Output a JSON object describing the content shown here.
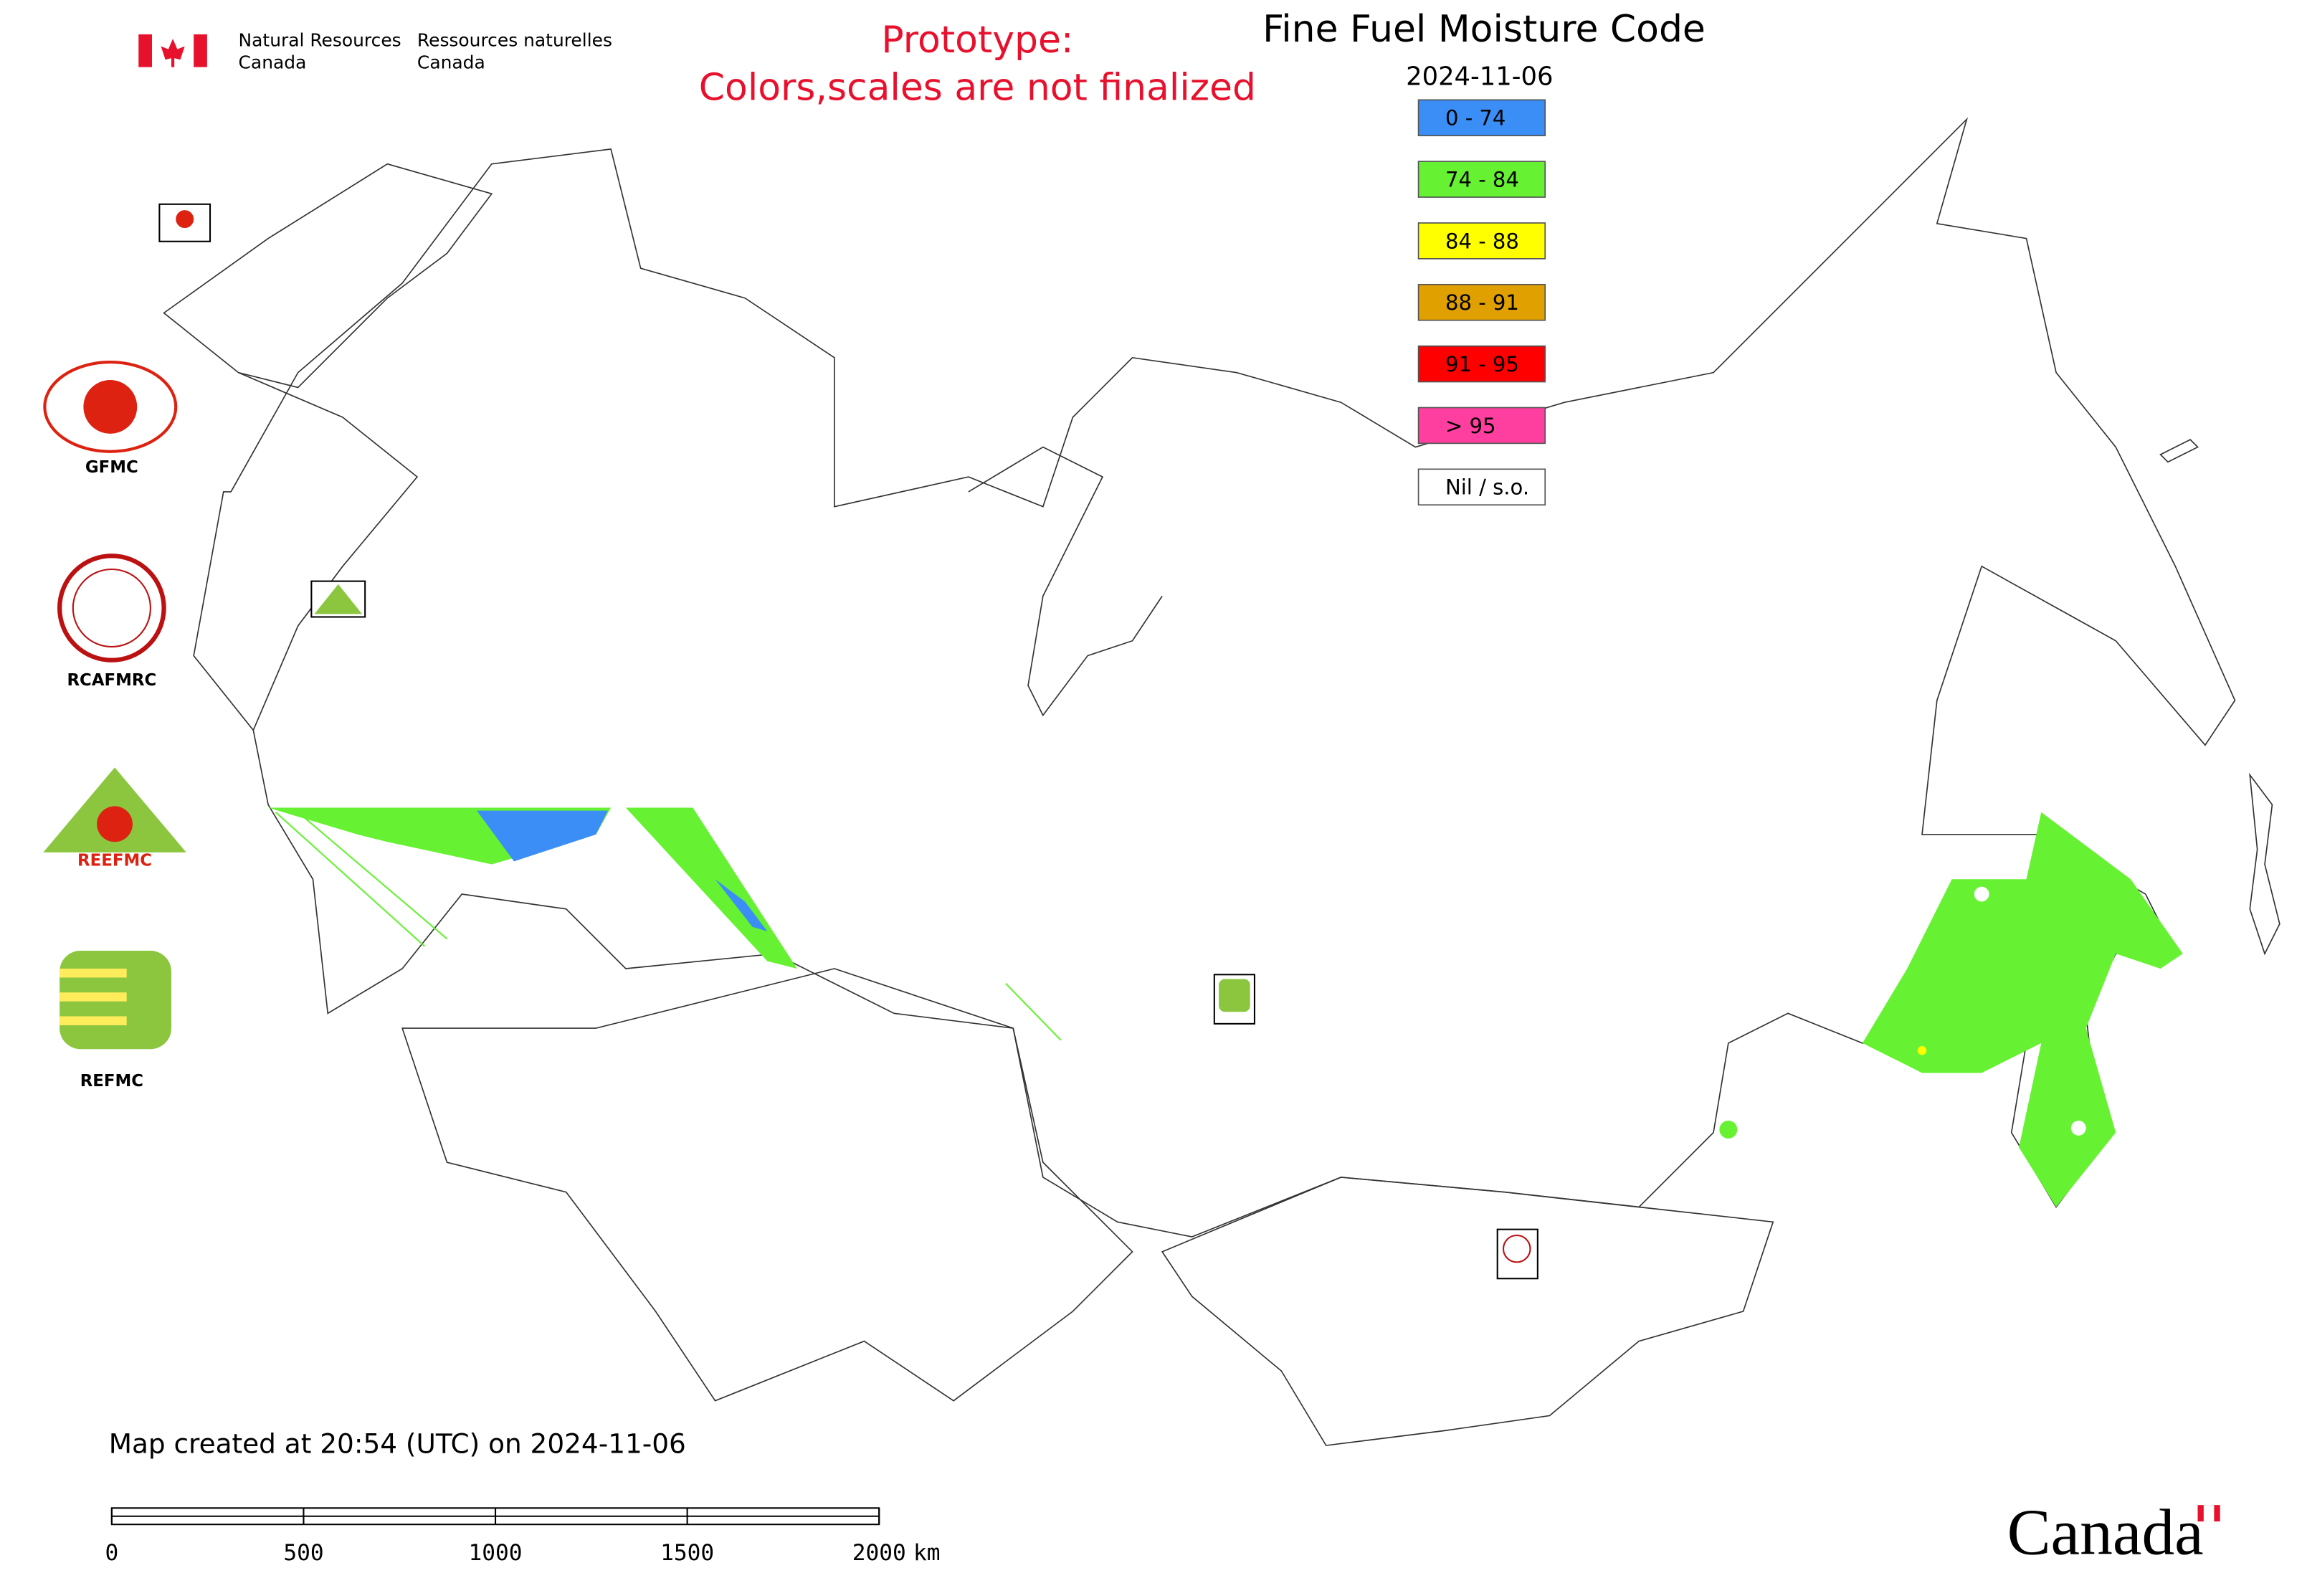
{
  "header": {
    "dept_en_line1": "Natural Resources",
    "dept_en_line2": "Canada",
    "dept_fr_line1": "Ressources naturelles",
    "dept_fr_line2": "Canada"
  },
  "notice": {
    "line1": "Prototype:",
    "line2": "Colors,scales are not finalized"
  },
  "map": {
    "title": "Fine Fuel Moisture Code",
    "date": "2024-11-06",
    "legend": [
      {
        "label": "0 - 74",
        "color": "#3a8ef5"
      },
      {
        "label": "74 - 84",
        "color": "#66f233"
      },
      {
        "label": "84 - 88",
        "color": "#ffff00"
      },
      {
        "label": "88 - 91",
        "color": "#e0a000"
      },
      {
        "label": "91 - 95",
        "color": "#ff0000"
      },
      {
        "label": "> 95",
        "color": "#ff3fa0"
      },
      {
        "label": "Nil / s.o.",
        "color": "#ffffff"
      }
    ],
    "partners": [
      "GFMC",
      "RCAFMRC",
      "REEFMC",
      "REFMC"
    ],
    "footer": "Map created at 20:54 (UTC) on 2024-11-06",
    "scale": {
      "ticks": [
        0,
        500,
        1000,
        1500,
        2000
      ],
      "unit": "km"
    }
  },
  "wordmark": "Canada"
}
